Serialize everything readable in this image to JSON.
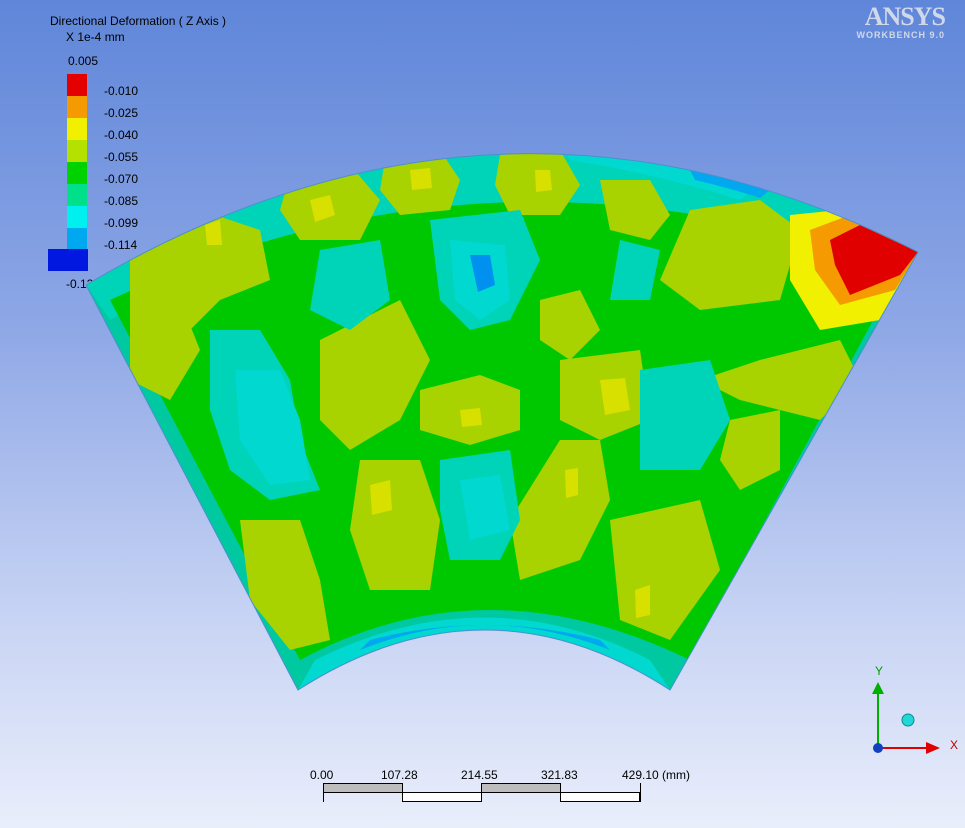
{
  "legend": {
    "title": "Directional Deformation ( Z Axis )",
    "units": "X 1e-4 mm",
    "max": "0.005",
    "min": "-0.129",
    "levels": [
      {
        "label": "-0.010",
        "color": "#e40000"
      },
      {
        "label": "-0.025",
        "color": "#f59a00"
      },
      {
        "label": "-0.040",
        "color": "#f0f000"
      },
      {
        "label": "-0.055",
        "color": "#b4e100"
      },
      {
        "label": "-0.070",
        "color": "#00d200"
      },
      {
        "label": "-0.085",
        "color": "#00e08a"
      },
      {
        "label": "-0.099",
        "color": "#00f0f0"
      },
      {
        "label": "-0.114",
        "color": "#00a8f0"
      }
    ],
    "min_color": "#0018e0"
  },
  "logo": {
    "brand": "ANSYS",
    "product": "WORKBENCH 9.0"
  },
  "scale": {
    "ticks": [
      "0.00",
      "107.28",
      "214.55",
      "321.83",
      "429.10 (mm)"
    ]
  },
  "triad": {
    "y_label": "Y",
    "x_label": "X"
  },
  "colors": {
    "sector_base": "#00c8a0",
    "green": "#00c800",
    "yellow_green": "#a8d200",
    "cyan": "#00d8d0",
    "blue": "#0070f0",
    "red": "#e00000",
    "orange": "#e8a000"
  }
}
